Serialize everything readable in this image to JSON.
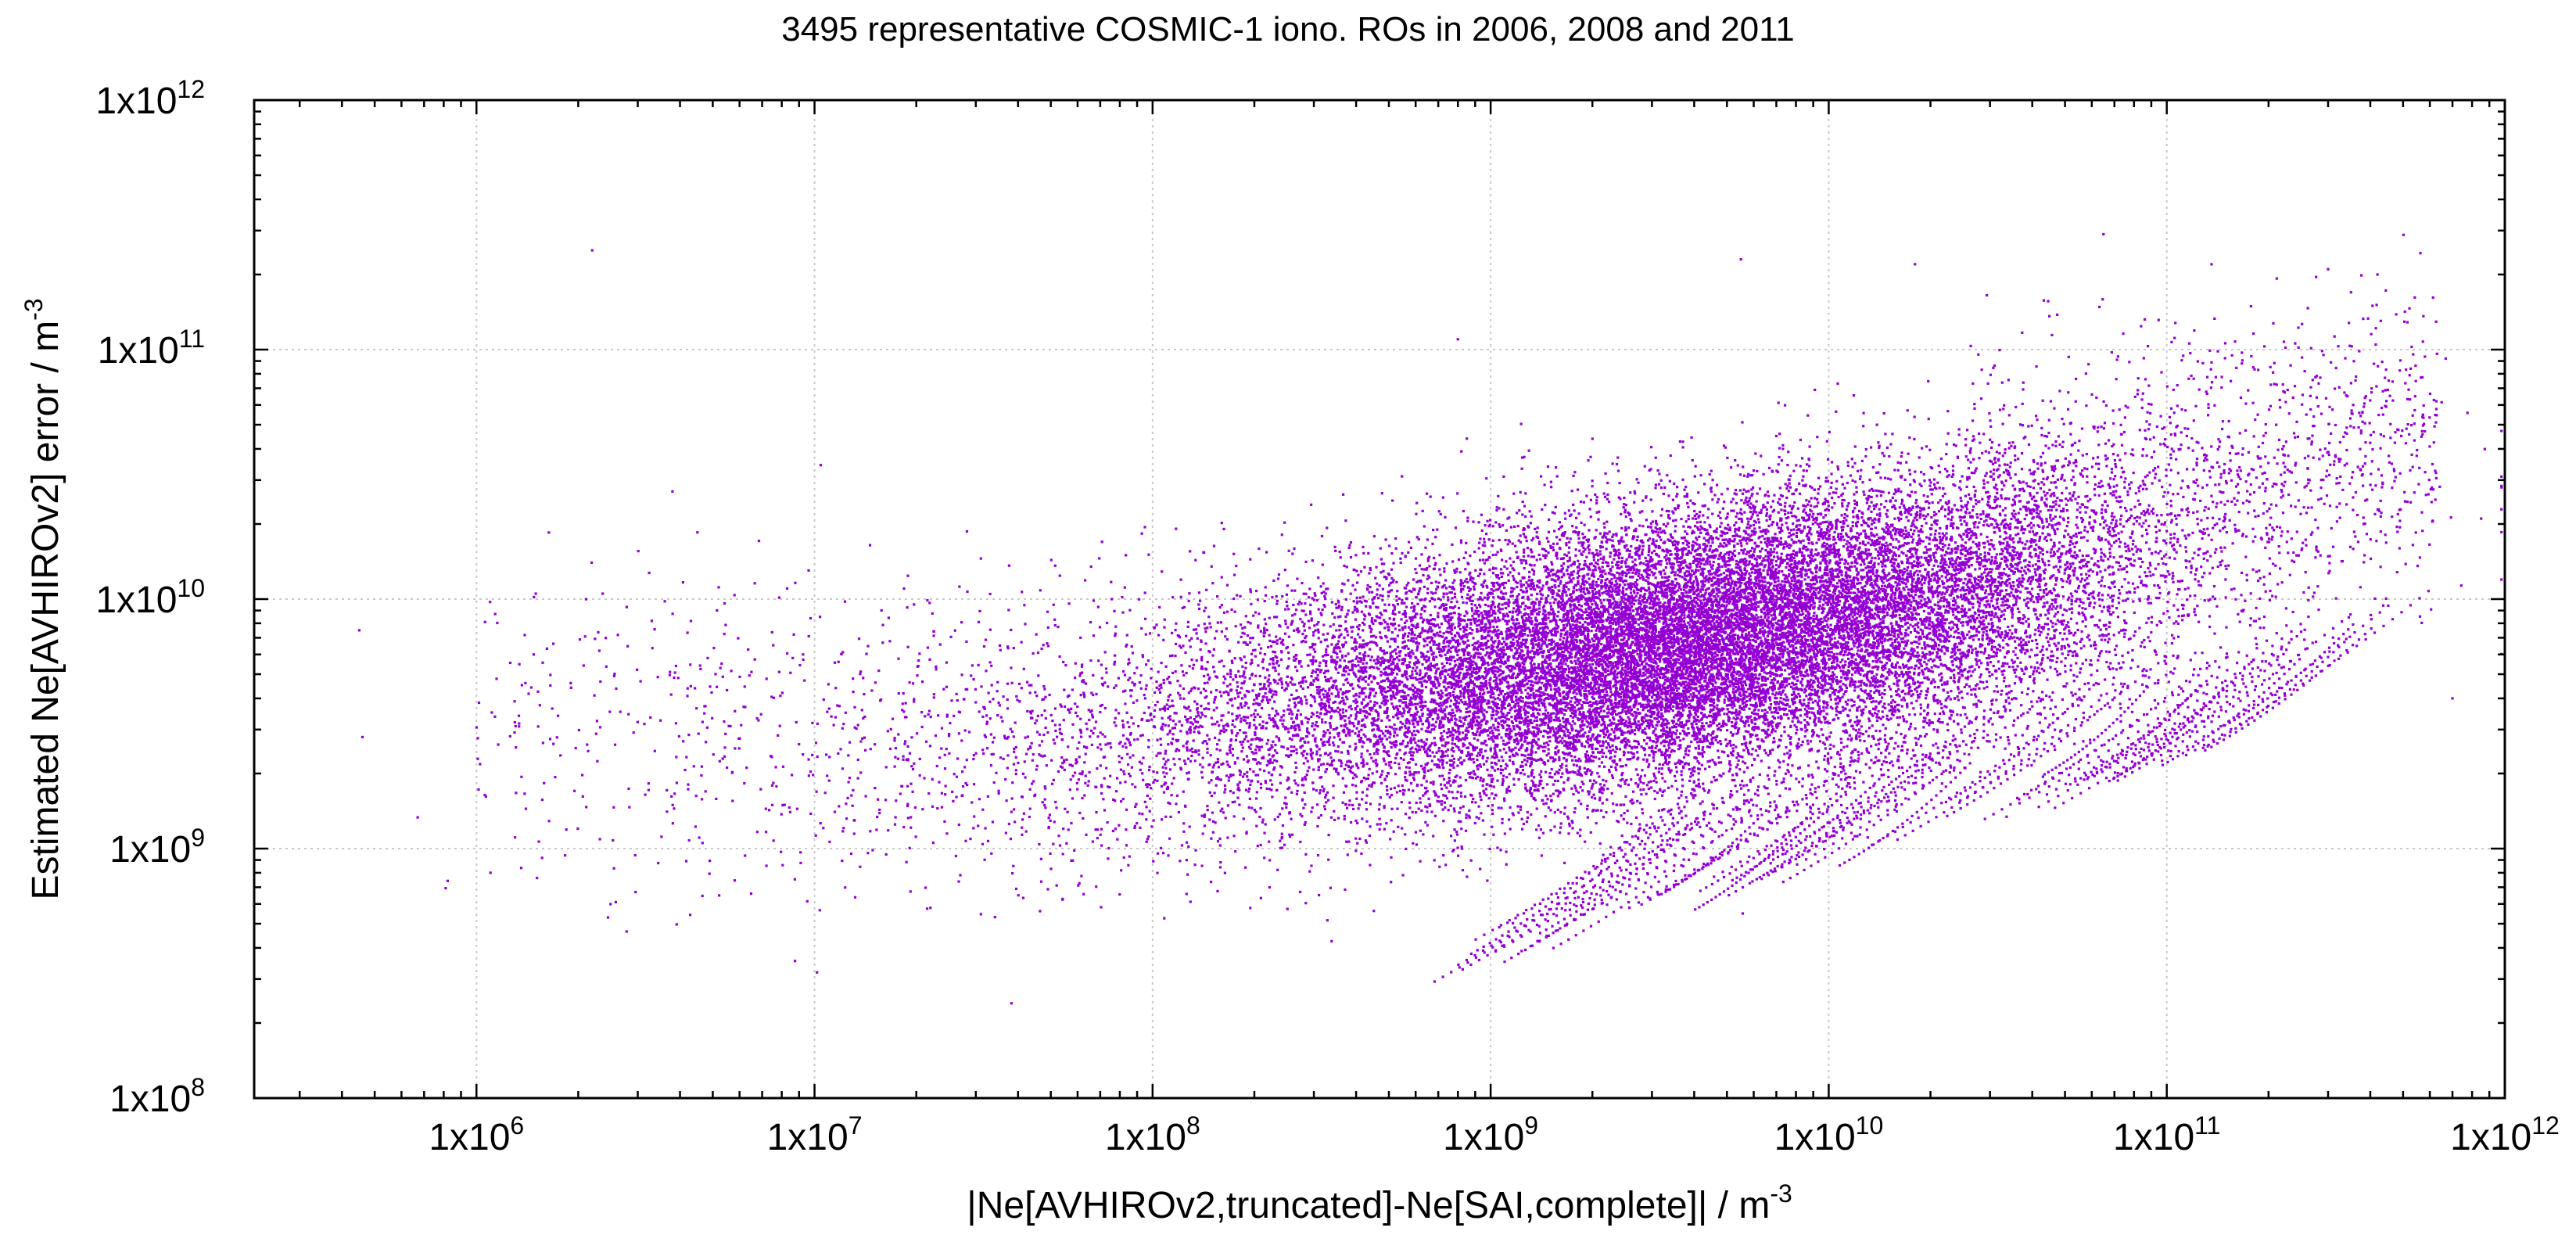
{
  "chart_data": {
    "type": "scatter",
    "title": "3495 representative COSMIC-1 iono. ROs in 2006, 2008 and 2011",
    "xlabel": "|Ne[AVHIROv2,truncated]-Ne[SAI,complete]| / m",
    "xlabel_sup": "-3",
    "ylabel": "Estimated Ne[AVHIROv2] error / m",
    "ylabel_sup": "-3",
    "x_scale": "log",
    "y_scale": "log",
    "xlim": [
      220000,
      1000000000000
    ],
    "ylim": [
      100000000,
      1000000000000
    ],
    "grid": true,
    "x_ticks": [
      {
        "value": 1000000,
        "mantissa": "1x10",
        "exp": "6"
      },
      {
        "value": 10000000,
        "mantissa": "1x10",
        "exp": "7"
      },
      {
        "value": 100000000,
        "mantissa": "1x10",
        "exp": "8"
      },
      {
        "value": 1000000000,
        "mantissa": "1x10",
        "exp": "9"
      },
      {
        "value": 10000000000,
        "mantissa": "1x10",
        "exp": "10"
      },
      {
        "value": 100000000000,
        "mantissa": "1x10",
        "exp": "11"
      },
      {
        "value": 1000000000000,
        "mantissa": "1x10",
        "exp": "12"
      }
    ],
    "y_ticks": [
      {
        "value": 100000000,
        "mantissa": "1x10",
        "exp": "8"
      },
      {
        "value": 1000000000,
        "mantissa": "1x10",
        "exp": "9"
      },
      {
        "value": 10000000000,
        "mantissa": "1x10",
        "exp": "10"
      },
      {
        "value": 100000000000,
        "mantissa": "1x10",
        "exp": "11"
      },
      {
        "value": 1000000000000,
        "mantissa": "1x10",
        "exp": "12"
      }
    ],
    "series": [
      {
        "name": "ROs",
        "color": "#9400d3",
        "points_generated": true,
        "approx_count": 60000,
        "relation": "log10(y) ≈ 9.85 + 0.2*(log10(x) - 9.6), with spread; denser near x≈1e9.5–1e10.5",
        "notable_points": [
          [
            450000,
            7500000000
          ],
          [
            460000,
            2800000000
          ],
          [
            1100000,
            800000000
          ],
          [
            2200000,
            250000000000
          ],
          [
            2450000,
            530000000
          ],
          [
            3800000,
            27000000000
          ],
          [
            800000000,
            110000000000
          ],
          [
            5500000000,
            230000000000
          ],
          [
            18000000000,
            220000000000
          ],
          [
            65000000000,
            290000000000
          ],
          [
            300000000000,
            210000000000
          ],
          [
            420000000000,
            200000000000
          ],
          [
            700000000000,
            4000000000
          ]
        ]
      }
    ]
  }
}
